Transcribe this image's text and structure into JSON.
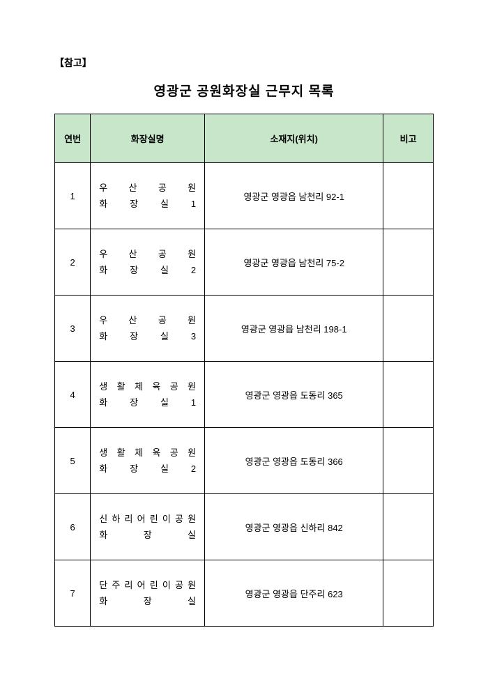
{
  "reference_label": "【참고】",
  "title": "영광군 공원화장실 근무지 목록",
  "columns": {
    "num": "연번",
    "name": "화장실명",
    "addr": "소재지(위치)",
    "note": "비고"
  },
  "header_bg": "#c8e6c9",
  "border_color": "#000000",
  "rows": [
    {
      "num": "1",
      "name_line1": "우 산 공 원",
      "name_line2": "화 장 실 1",
      "addr": "영광군 영광읍 남천리 92-1",
      "note": ""
    },
    {
      "num": "2",
      "name_line1": "우 산 공 원",
      "name_line2": "화 장 실 2",
      "addr": "영광군 영광읍 남천리 75-2",
      "note": ""
    },
    {
      "num": "3",
      "name_line1": "우 산 공 원",
      "name_line2": "화 장 실 3",
      "addr": "영광군 영광읍 남천리 198-1",
      "note": ""
    },
    {
      "num": "4",
      "name_line1": "생 활 체 육 공 원",
      "name_line2": "화 장 실 1",
      "addr": "영광군 영광읍 도동리 365",
      "note": ""
    },
    {
      "num": "5",
      "name_line1": "생 활 체 육 공 원",
      "name_line2": "화 장 실 2",
      "addr": "영광군 영광읍 도동리 366",
      "note": ""
    },
    {
      "num": "6",
      "name_line1": "신 하 리 어 린 이 공 원",
      "name_line2": "화 장 실",
      "addr": "영광군 영광읍 신하리 842",
      "note": ""
    },
    {
      "num": "7",
      "name_line1": "단 주 리 어 린 이 공 원",
      "name_line2": "화 장 실",
      "addr": "영광군 영광읍 단주리 623",
      "note": ""
    }
  ]
}
